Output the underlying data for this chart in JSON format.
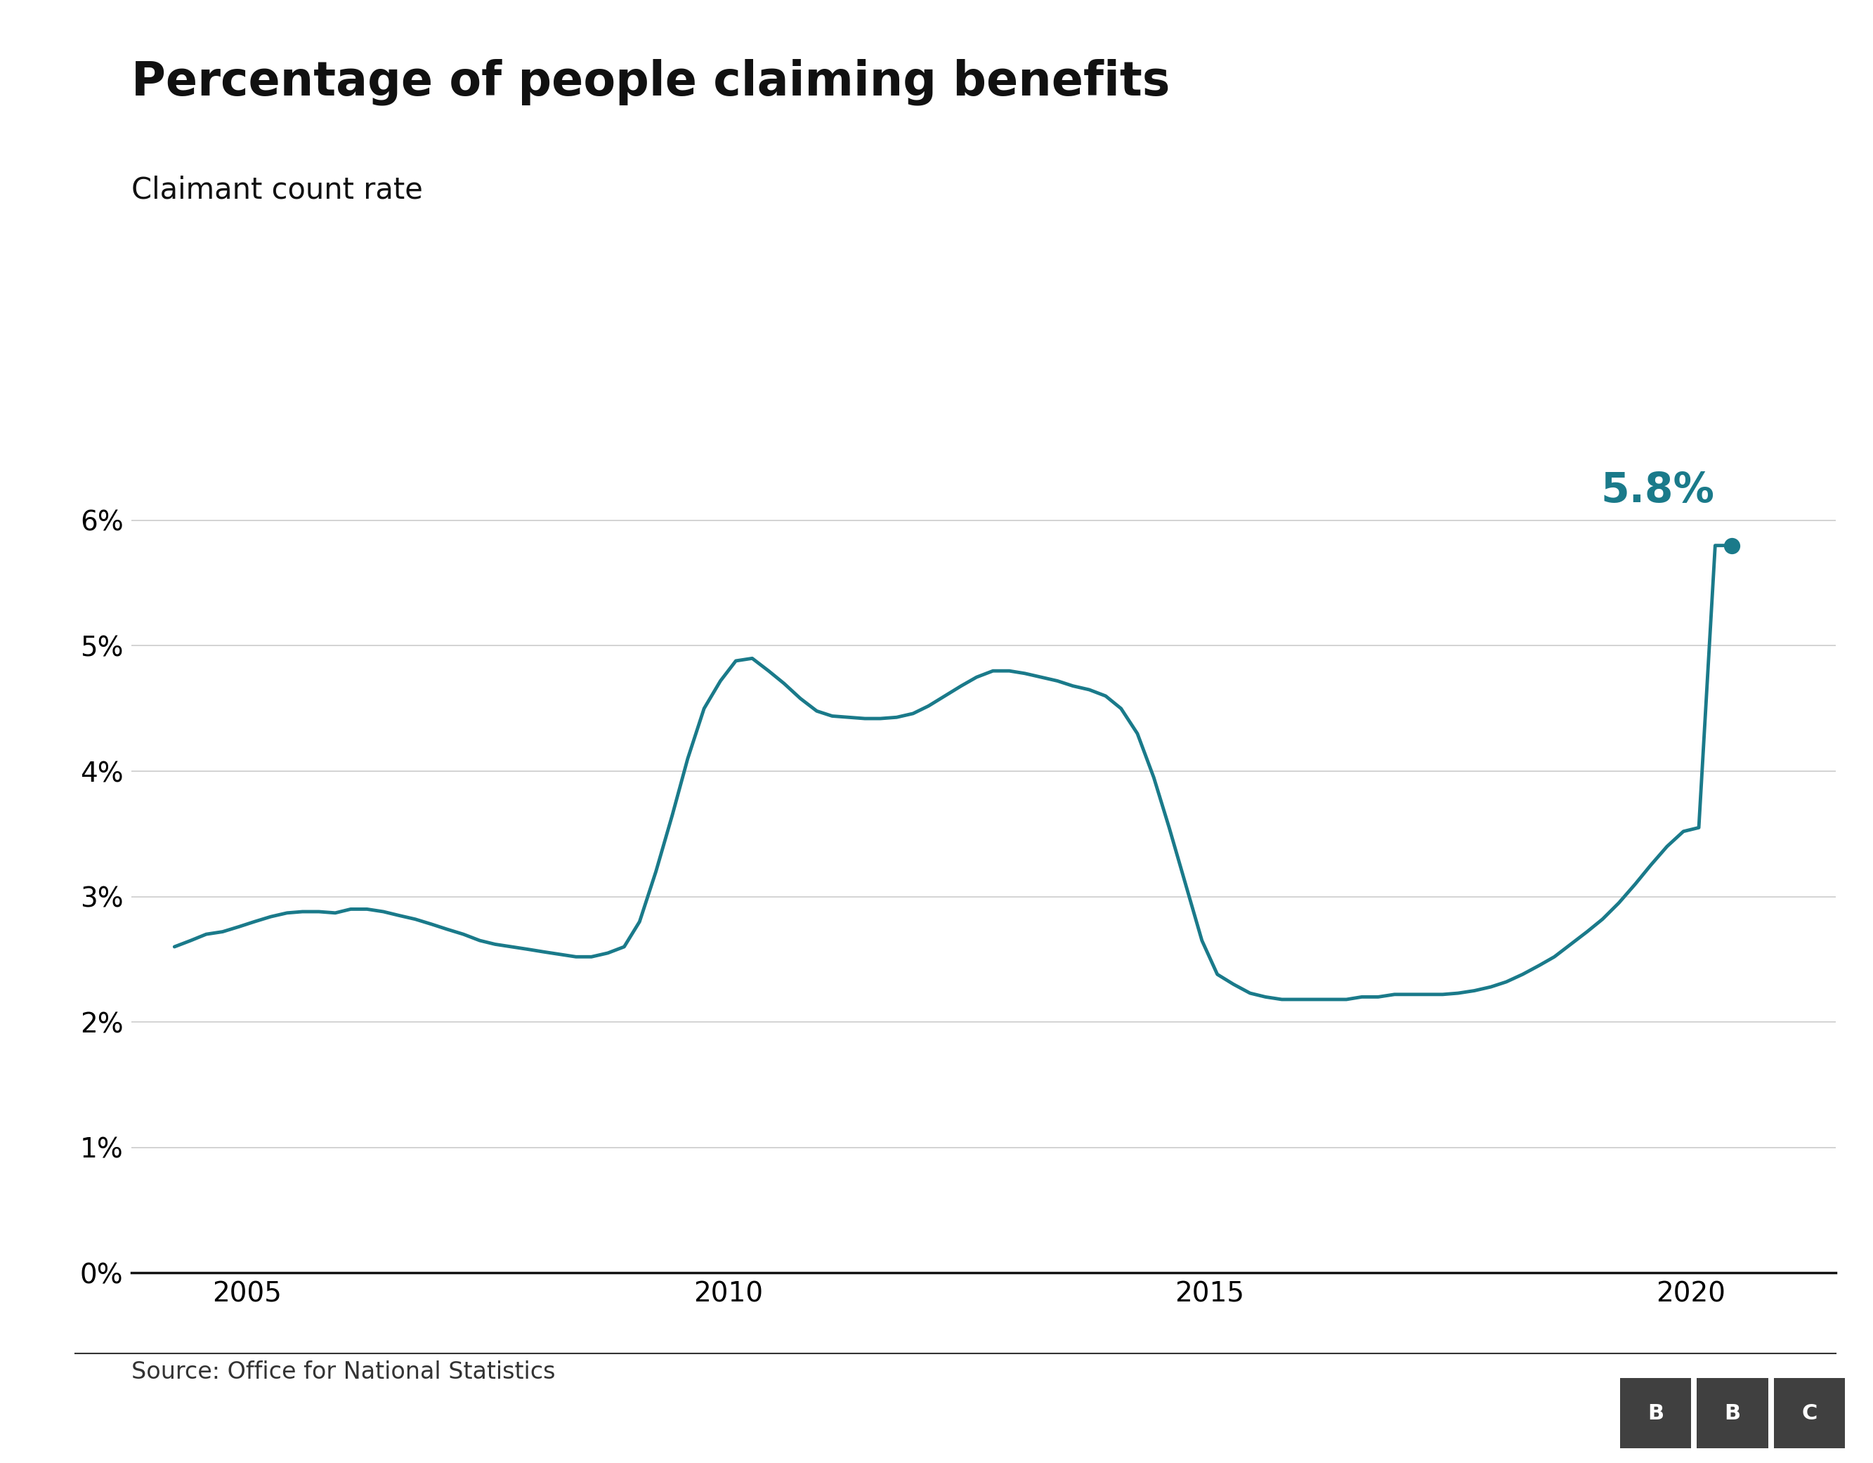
{
  "title": "Percentage of people claiming benefits",
  "subtitle": "Claimant count rate",
  "source": "Source: Office for National Statistics",
  "line_color": "#1a7a8a",
  "annotation_color": "#1a7a8a",
  "annotation_text": "5.8%",
  "background_color": "#ffffff",
  "grid_color": "#cccccc",
  "title_fontsize": 48,
  "subtitle_fontsize": 30,
  "tick_fontsize": 28,
  "annotation_fontsize": 42,
  "source_fontsize": 24,
  "line_width": 3.5,
  "xlim": [
    2003.8,
    2021.5
  ],
  "ylim": [
    0.0,
    7.0
  ],
  "yticks": [
    0,
    1,
    2,
    3,
    4,
    5,
    6
  ],
  "ytick_labels": [
    "0%",
    "1%",
    "2%",
    "3%",
    "4%",
    "5%",
    "6%"
  ],
  "xticks": [
    2005,
    2010,
    2015,
    2020
  ],
  "dates": [
    2004.25,
    2004.42,
    2004.58,
    2004.75,
    2004.92,
    2005.08,
    2005.25,
    2005.42,
    2005.58,
    2005.75,
    2005.92,
    2006.08,
    2006.25,
    2006.42,
    2006.58,
    2006.75,
    2006.92,
    2007.08,
    2007.25,
    2007.42,
    2007.58,
    2007.75,
    2007.92,
    2008.08,
    2008.25,
    2008.42,
    2008.58,
    2008.75,
    2008.92,
    2009.08,
    2009.25,
    2009.42,
    2009.58,
    2009.75,
    2009.92,
    2010.08,
    2010.25,
    2010.42,
    2010.58,
    2010.75,
    2010.92,
    2011.08,
    2011.25,
    2011.42,
    2011.58,
    2011.75,
    2011.92,
    2012.08,
    2012.25,
    2012.42,
    2012.58,
    2012.75,
    2012.92,
    2013.08,
    2013.25,
    2013.42,
    2013.58,
    2013.75,
    2013.92,
    2014.08,
    2014.25,
    2014.42,
    2014.58,
    2014.75,
    2014.92,
    2015.08,
    2015.25,
    2015.42,
    2015.58,
    2015.75,
    2015.92,
    2016.08,
    2016.25,
    2016.42,
    2016.58,
    2016.75,
    2016.92,
    2017.08,
    2017.25,
    2017.42,
    2017.58,
    2017.75,
    2017.92,
    2018.08,
    2018.25,
    2018.42,
    2018.58,
    2018.75,
    2018.92,
    2019.08,
    2019.25,
    2019.42,
    2019.58,
    2019.75,
    2019.92,
    2020.08,
    2020.25,
    2020.42
  ],
  "values": [
    2.6,
    2.65,
    2.7,
    2.72,
    2.76,
    2.8,
    2.84,
    2.87,
    2.88,
    2.88,
    2.87,
    2.9,
    2.9,
    2.88,
    2.85,
    2.82,
    2.78,
    2.74,
    2.7,
    2.65,
    2.62,
    2.6,
    2.58,
    2.56,
    2.54,
    2.52,
    2.52,
    2.55,
    2.6,
    2.8,
    3.2,
    3.65,
    4.1,
    4.5,
    4.72,
    4.88,
    4.9,
    4.8,
    4.7,
    4.58,
    4.48,
    4.44,
    4.43,
    4.42,
    4.42,
    4.43,
    4.46,
    4.52,
    4.6,
    4.68,
    4.75,
    4.8,
    4.8,
    4.78,
    4.75,
    4.72,
    4.68,
    4.65,
    4.6,
    4.5,
    4.3,
    3.95,
    3.55,
    3.1,
    2.65,
    2.38,
    2.3,
    2.23,
    2.2,
    2.18,
    2.18,
    2.18,
    2.18,
    2.18,
    2.2,
    2.2,
    2.22,
    2.22,
    2.22,
    2.22,
    2.23,
    2.25,
    2.28,
    2.32,
    2.38,
    2.45,
    2.52,
    2.62,
    2.72,
    2.82,
    2.95,
    3.1,
    3.25,
    3.4,
    3.52,
    3.55,
    5.8,
    5.8
  ],
  "bbc_color": "#404040"
}
